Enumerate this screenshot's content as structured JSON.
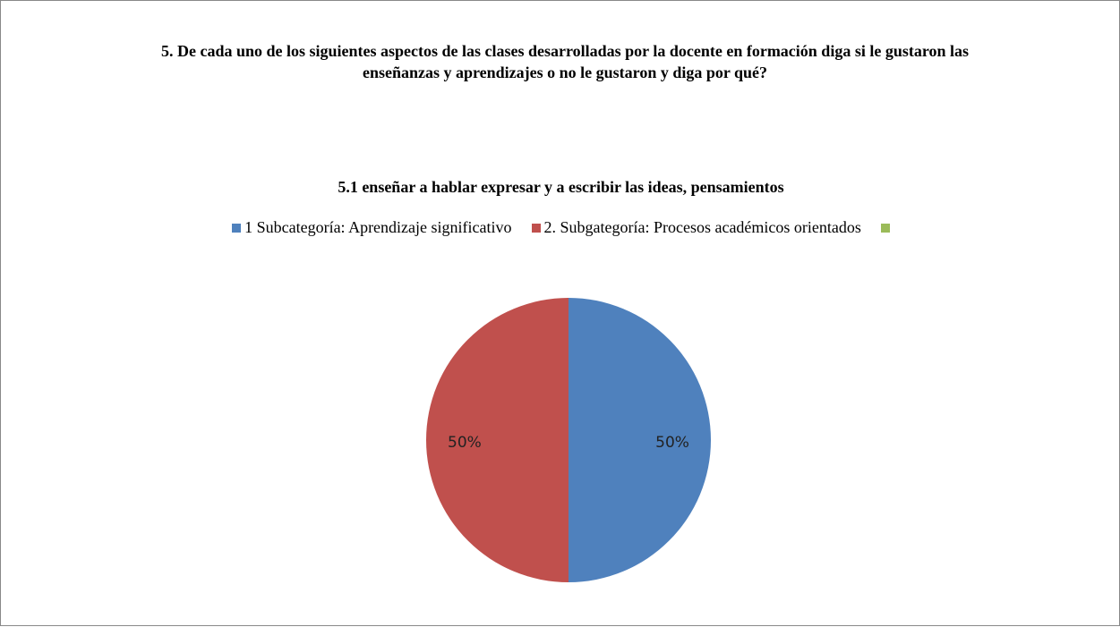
{
  "chart_data": {
    "type": "pie",
    "title": "5. De cada uno de los siguientes aspectos de las clases desarrolladas por la docente en formación diga si le gustaron las enseñanzas y aprendizajes o no le gustaron y diga por qué?",
    "subtitle": "5.1 enseñar a hablar expresar y a escribir las ideas, pensamientos",
    "categories": [
      "1 Subcategoría: Aprendizaje significativo",
      "2. Subgategoría: Procesos académicos orientados",
      null
    ],
    "values": [
      50,
      50,
      0
    ],
    "value_labels": [
      "50%",
      "50%",
      null
    ],
    "colors": [
      "#4f81bd",
      "#c0504d",
      "#9bbb59"
    ],
    "legend": "top"
  }
}
